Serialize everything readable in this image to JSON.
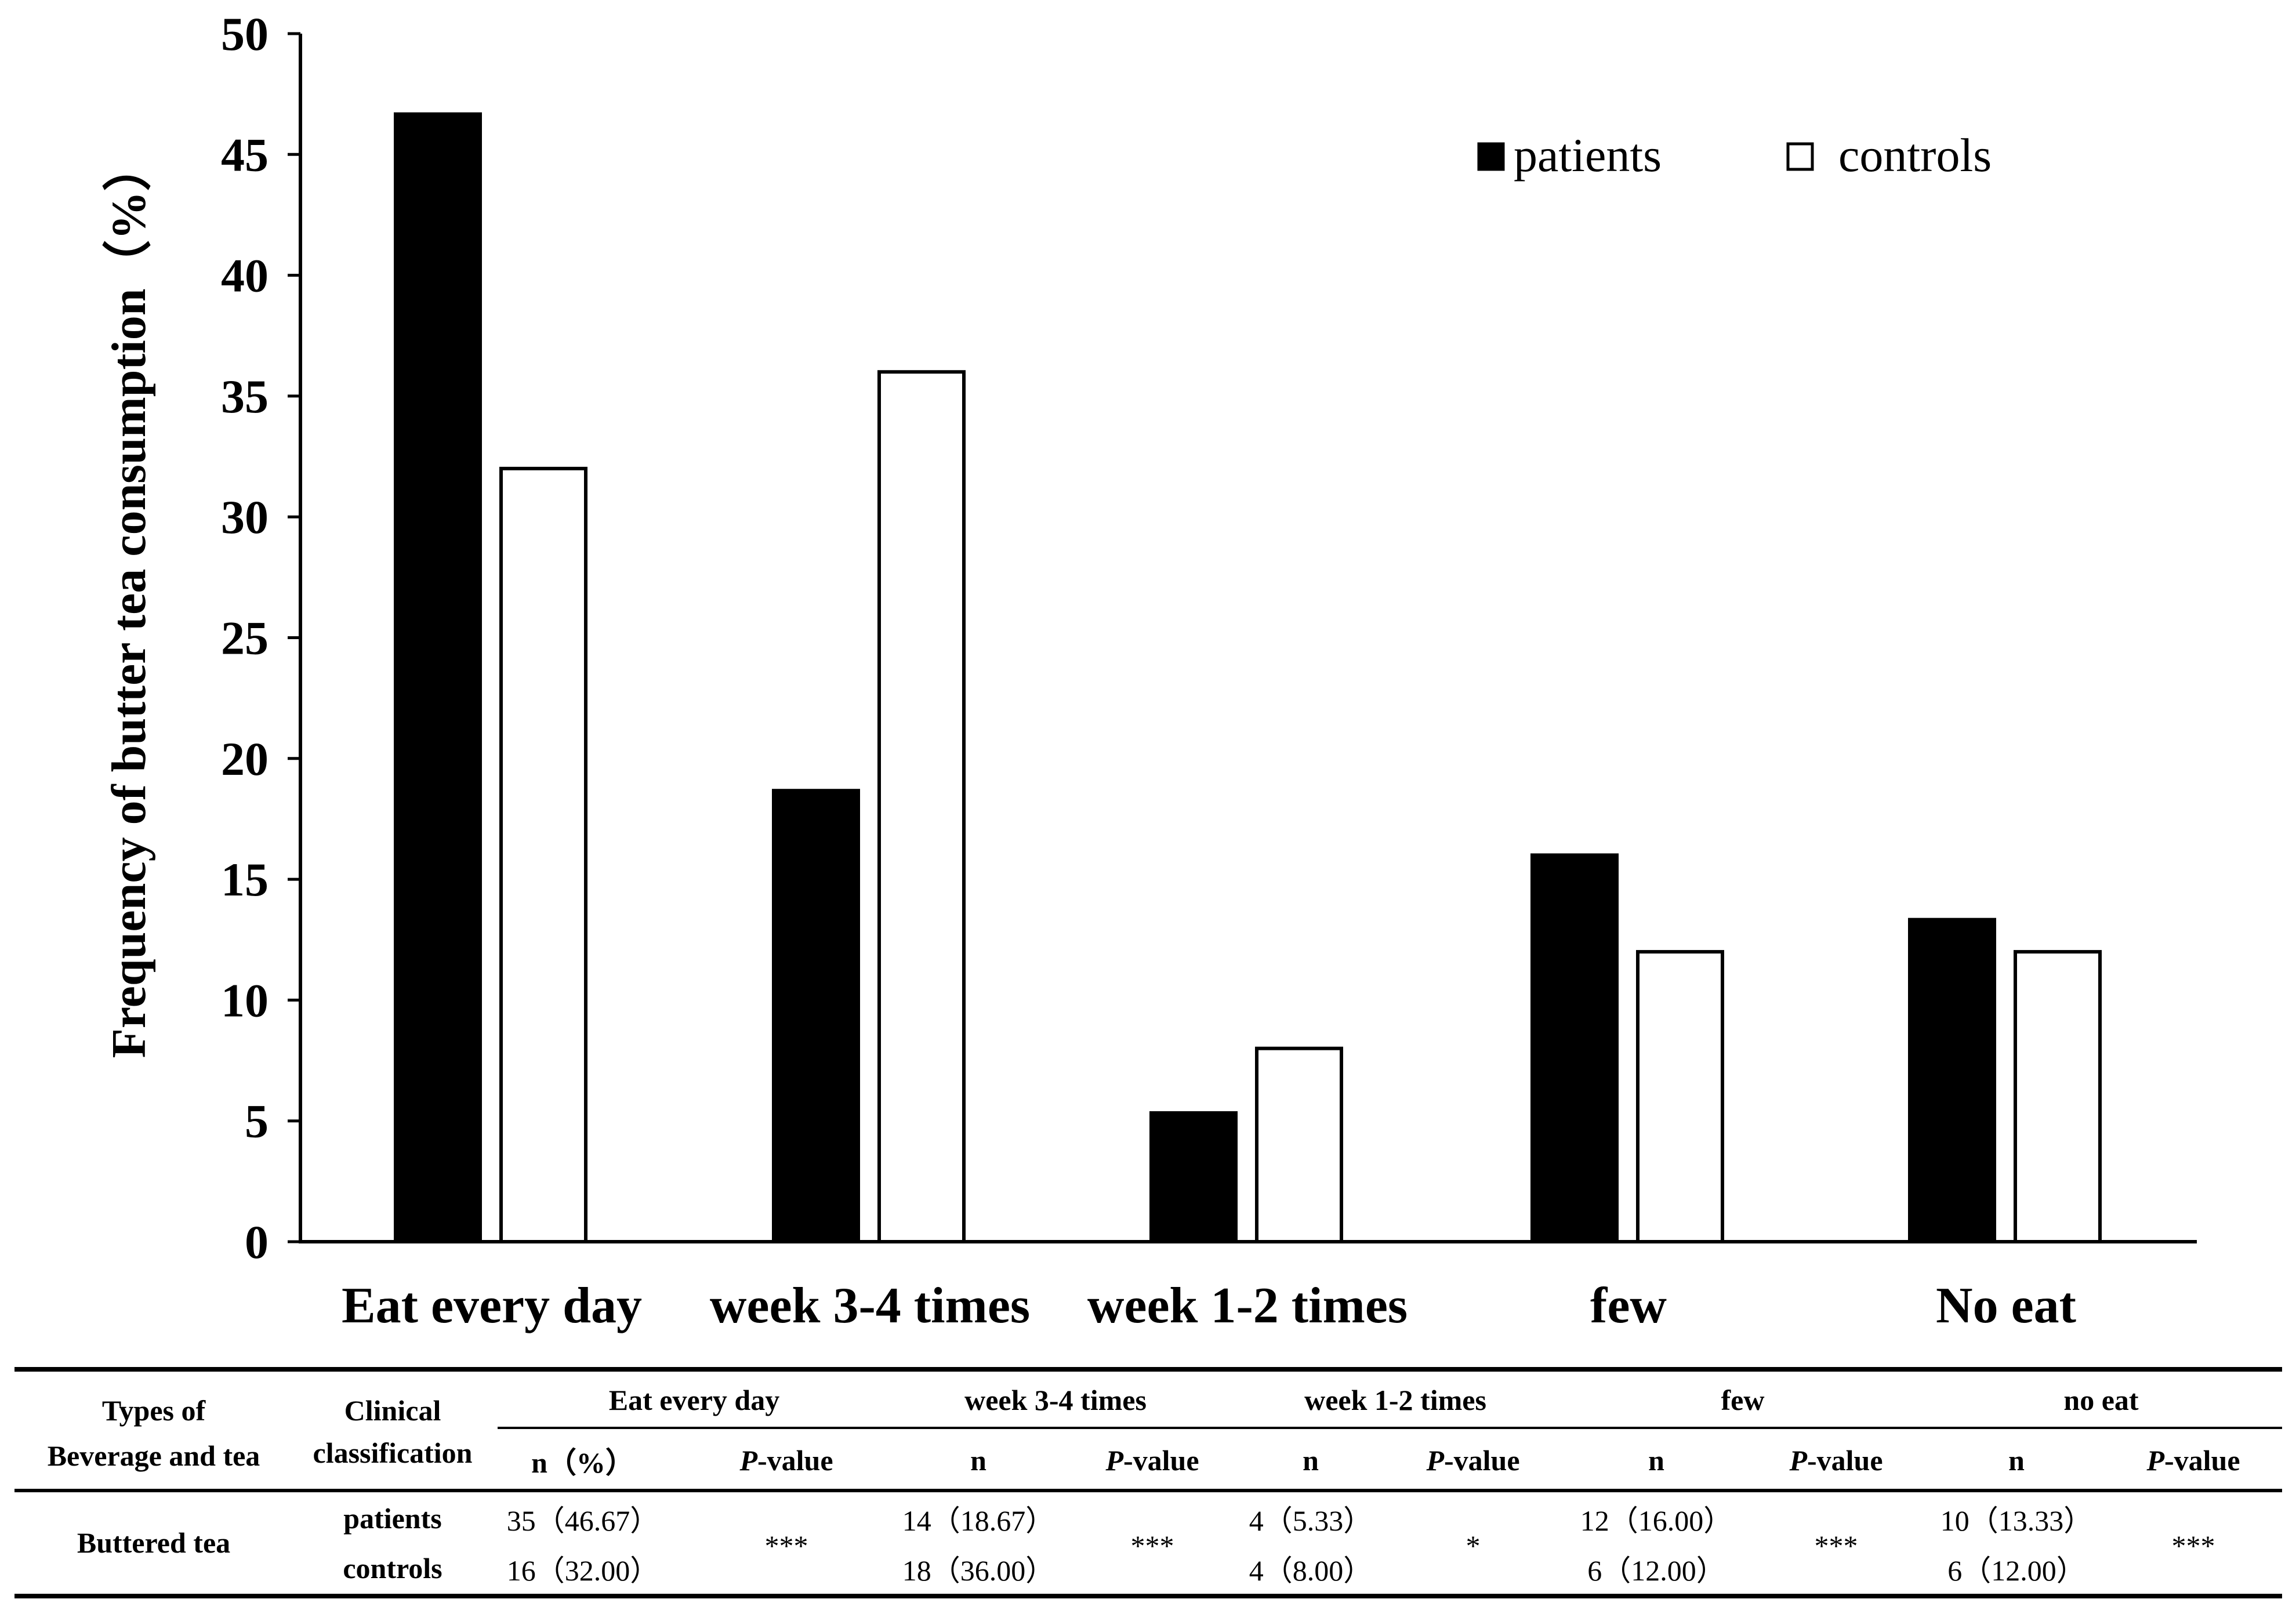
{
  "chart_data": {
    "type": "bar",
    "ylabel": "Frequency of butter tea consumption（%）",
    "xlabel": "",
    "ylim": [
      0,
      50
    ],
    "yticks": [
      0,
      5,
      10,
      15,
      20,
      25,
      30,
      35,
      40,
      45,
      50
    ],
    "categories": [
      "Eat every day",
      "week 3-4 times",
      "week 1-2 times",
      "few",
      "No eat"
    ],
    "series": [
      {
        "name": "patients",
        "values": [
          46.67,
          18.67,
          5.33,
          16.0,
          13.33
        ],
        "color": "#000000"
      },
      {
        "name": "controls",
        "values": [
          32.0,
          36.0,
          8.0,
          12.0,
          12.0
        ],
        "color": "#ffffff"
      }
    ],
    "legend_position": "top-right",
    "grid": false
  },
  "table": {
    "header_col1": [
      "Types of",
      "Beverage and tea"
    ],
    "header_col2": [
      "Clinical",
      "classification"
    ],
    "groups": [
      "Eat every day",
      "week 3-4 times",
      "week 1-2 times",
      "few",
      "no eat"
    ],
    "subheaders": [
      "n（%）",
      "P-value",
      "n",
      "P-value",
      "n",
      "P-value",
      "n",
      "P-value",
      "n",
      "P-value"
    ],
    "row_label": "Buttered tea",
    "rows": [
      {
        "label": "patients",
        "n": [
          "35（46.67）",
          "14（18.67）",
          "4（5.33）",
          "12（16.00）",
          "10（13.33）"
        ]
      },
      {
        "label": "controls",
        "n": [
          "16（32.00）",
          "18（36.00）",
          "4（8.00）",
          "6（12.00）",
          "6（12.00）"
        ]
      }
    ],
    "p_values": [
      "***",
      "***",
      "*",
      "***",
      "***"
    ]
  }
}
